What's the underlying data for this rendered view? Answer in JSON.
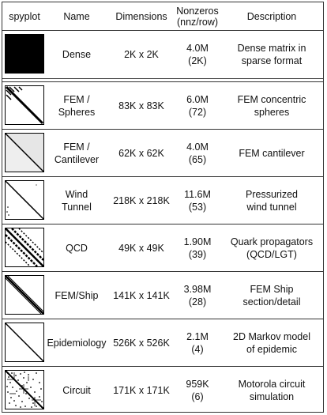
{
  "header": {
    "spyplot": "spyplot",
    "name": "Name",
    "dimensions": "Dimensions",
    "nonzeros": "Nonzeros\n(nnz/row)",
    "description": "Description"
  },
  "rows": [
    {
      "name": "Dense",
      "dimensions": "2K x 2K",
      "nonzeros": "4.0M\n(2K)",
      "description": "Dense matrix in\nsparse format",
      "spy_icon": "dense-spy-icon"
    },
    {
      "name": "FEM /\nSpheres",
      "dimensions": "83K x 83K",
      "nonzeros": "6.0M\n(72)",
      "description": "FEM concentric\nspheres",
      "spy_icon": "fem-spheres-spy-icon"
    },
    {
      "name": "FEM /\nCantilever",
      "dimensions": "62K x 62K",
      "nonzeros": "4.0M\n(65)",
      "description": "FEM cantilever",
      "spy_icon": "fem-cantilever-spy-icon"
    },
    {
      "name": "Wind\nTunnel",
      "dimensions": "218K x 218K",
      "nonzeros": "11.6M\n(53)",
      "description": "Pressurized\nwind tunnel",
      "spy_icon": "wind-tunnel-spy-icon"
    },
    {
      "name": "QCD",
      "dimensions": "49K x 49K",
      "nonzeros": "1.90M\n(39)",
      "description": "Quark propagators\n(QCD/LGT)",
      "spy_icon": "qcd-spy-icon"
    },
    {
      "name": "FEM/Ship",
      "dimensions": "141K x 141K",
      "nonzeros": "3.98M\n(28)",
      "description": "FEM Ship\nsection/detail",
      "spy_icon": "fem-ship-spy-icon"
    },
    {
      "name": "Epidemiology",
      "dimensions": "526K x 526K",
      "nonzeros": "2.1M\n(4)",
      "description": "2D Markov model\nof epidemic",
      "spy_icon": "epidemiology-spy-icon"
    },
    {
      "name": "Circuit",
      "dimensions": "171K x 171K",
      "nonzeros": "959K\n(6)",
      "description": "Motorola circuit\nsimulation",
      "spy_icon": "circuit-spy-icon"
    }
  ]
}
